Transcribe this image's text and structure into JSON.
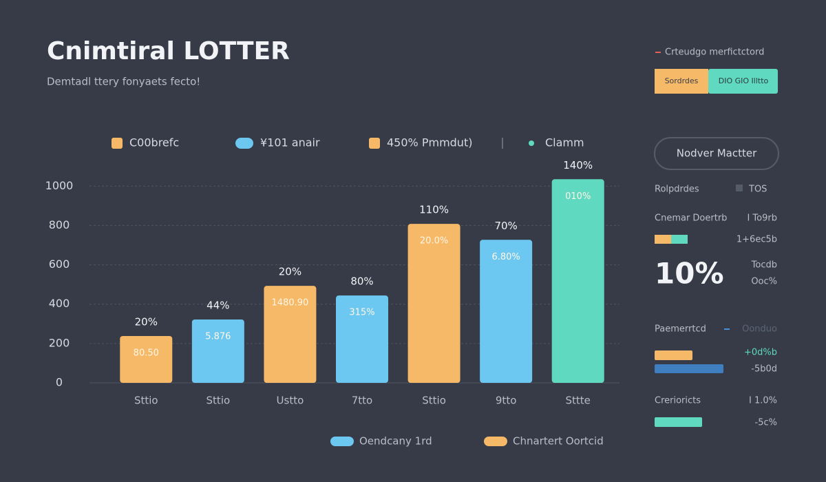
{
  "header": {
    "title": "Cnimtiral LOTTER",
    "subtitle": "Demtadl ttery fonyaets fecto!"
  },
  "chart_data": {
    "type": "bar",
    "categories": [
      "Sttio",
      "Sttio",
      "Ustto",
      "7tto",
      "Sttio",
      "9tto",
      "Sttte"
    ],
    "values": [
      238,
      322,
      493,
      444,
      808,
      727,
      1035
    ],
    "colors": [
      "#f5b968",
      "#6cc8f0",
      "#f5b968",
      "#6cc8f0",
      "#f5b968",
      "#6cc8f0",
      "#5fd9c0"
    ],
    "top_labels": [
      "20%",
      "44%",
      "20%",
      "80%",
      "110%",
      "70%",
      "140%"
    ],
    "inner_labels": [
      "80.50",
      "5.876",
      "1480.90",
      "315%",
      "20.0%",
      "6.80%",
      "010%"
    ],
    "ylim": [
      0,
      1050
    ],
    "yticks": [
      0,
      200,
      400,
      600,
      800,
      1000
    ],
    "grid": true,
    "legend": [
      {
        "name": "C00brefc",
        "color": "#f5b968"
      },
      {
        "name": "¥101 anair",
        "color": "#6cc8f0"
      },
      {
        "name": "450% Pmmdut)",
        "color": "#f5b968"
      },
      {
        "name": "Clamm",
        "color": "#5fd9c0"
      }
    ],
    "bottom_legend": [
      {
        "name": "Oendcany 1rd",
        "color": "#6cc8f0"
      },
      {
        "name": "Chnartert Oortcid",
        "color": "#f5b968"
      }
    ]
  },
  "panel": {
    "heading": "Crteudgo merfictctord",
    "button_a": "Sordrdes",
    "button_b": "DIO GIO Illtto",
    "pill": "Nodver Mactter",
    "row1": {
      "label": "Rolpdrdes",
      "value": "TOS"
    },
    "row2": {
      "label": "Cnemar Doertrb",
      "value": "I To9rb",
      "sub": "1+6ec5b"
    },
    "big": "10%",
    "big_a": "Tocdb",
    "big_b": "Ooc%",
    "row3": {
      "label": "Paemerrtcd",
      "value": "Oonduo",
      "a": "+0d%b",
      "b": "-5b0d"
    },
    "row4": {
      "label": "Crerioricts",
      "value": "I 1.0%",
      "b": "-5c%"
    }
  }
}
